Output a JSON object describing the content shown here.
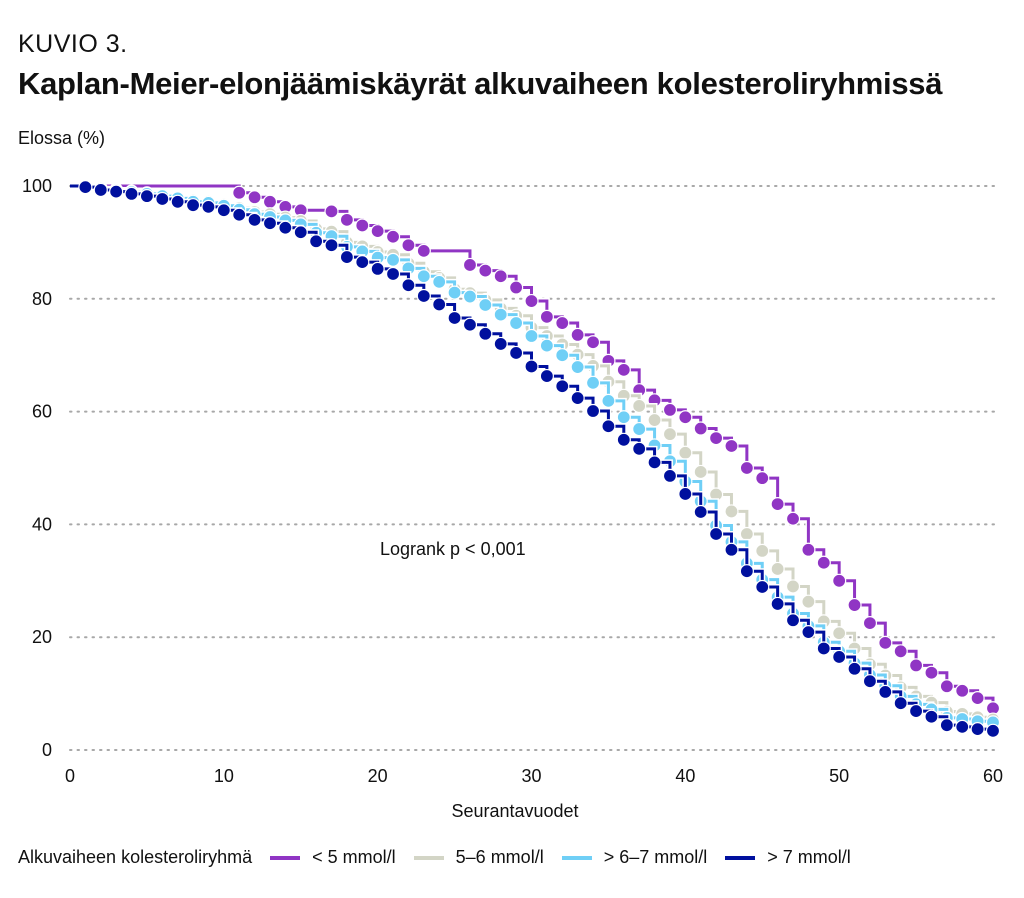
{
  "figure_label": "KUVIO 3.",
  "chart_data": {
    "type": "line",
    "title": "Kaplan-Meier-elonjäämiskäyrät alkuvaiheen kolesteroliryhmissä",
    "ylabel": "Elossa (%)",
    "xlabel": "Seurantavuodet",
    "xlim": [
      0,
      60
    ],
    "ylim": [
      0,
      100
    ],
    "xticks": [
      "0",
      "10",
      "20",
      "30",
      "40",
      "50",
      "60"
    ],
    "yticks": [
      "0",
      "20",
      "40",
      "60",
      "80",
      "100"
    ],
    "grid": "horizontal dotted",
    "annotation": "Logrank p < 0,001",
    "legend_title": "Alkuvaiheen kolesteroliryhmä",
    "legend_position": "bottom",
    "x": [
      0,
      1,
      2,
      3,
      4,
      5,
      6,
      7,
      8,
      9,
      10,
      11,
      12,
      13,
      14,
      15,
      16,
      17,
      18,
      19,
      20,
      21,
      22,
      23,
      24,
      25,
      26,
      27,
      28,
      29,
      30,
      31,
      32,
      33,
      34,
      35,
      36,
      37,
      38,
      39,
      40,
      41,
      42,
      43,
      44,
      45,
      46,
      47,
      48,
      49,
      50,
      51,
      52,
      53,
      54,
      55,
      56,
      57,
      58,
      59,
      60
    ],
    "series": [
      {
        "name": "< 5 mmol/l",
        "color": "#9035c4",
        "values": [
          100,
          100,
          100,
          100,
          100,
          100,
          100,
          100,
          100,
          100,
          100,
          98.8,
          98,
          97.2,
          96.3,
          95.7,
          95.7,
          95.5,
          94,
          93,
          92,
          91,
          89.5,
          88.5,
          88.5,
          88.5,
          86,
          85,
          84,
          82,
          79.6,
          76.8,
          75.7,
          73.6,
          72.3,
          69,
          67.4,
          63.8,
          62,
          60.3,
          59,
          57,
          55.3,
          53.9,
          50,
          48.2,
          43.6,
          41,
          35.5,
          33.2,
          30,
          25.7,
          22.5,
          19,
          17.5,
          15,
          13.7,
          11.3,
          10.5,
          9.2,
          7.4
        ]
      },
      {
        "name": "5–6 mmol/l",
        "color": "#d3d5c6",
        "values": [
          100,
          99.9,
          99.5,
          99.3,
          99.0,
          98.7,
          98.3,
          97.9,
          97.4,
          97.2,
          96.7,
          96.1,
          95.4,
          95.0,
          94.4,
          93.8,
          92.4,
          91.9,
          90.0,
          89.3,
          88.3,
          87.8,
          86.3,
          84.8,
          83.7,
          81.7,
          81.0,
          79.8,
          78.3,
          77.0,
          74.9,
          73.4,
          71.9,
          70.1,
          68.1,
          65.3,
          62.8,
          61.0,
          58.5,
          56.0,
          52.7,
          49.3,
          45.3,
          42.3,
          38.3,
          35.3,
          32.1,
          29.0,
          26.3,
          22.8,
          20.7,
          18.0,
          15.2,
          13.2,
          11.1,
          9.5,
          8.4,
          6.8,
          6.4,
          5.8,
          5.4
        ]
      },
      {
        "name": "> 6–7 mmol/l",
        "color": "#6fcff6",
        "values": [
          100,
          99.9,
          99.5,
          99.2,
          98.9,
          98.6,
          98.2,
          97.8,
          97.2,
          97.0,
          96.5,
          95.8,
          95.0,
          94.5,
          93.9,
          93.2,
          91.7,
          91.1,
          89.2,
          88.4,
          87.3,
          86.9,
          85.4,
          84.0,
          83.0,
          81.1,
          80.4,
          78.9,
          77.2,
          75.7,
          73.4,
          71.7,
          70.0,
          67.9,
          65.1,
          61.9,
          59.0,
          56.9,
          54.0,
          51.2,
          47.6,
          44.1,
          39.8,
          36.9,
          33.1,
          30.2,
          27.1,
          24.2,
          22.0,
          19.1,
          17.5,
          15.4,
          13.3,
          11.4,
          9.5,
          8.1,
          7.2,
          5.7,
          5.5,
          5.1,
          4.9
        ]
      },
      {
        "name": "> 7 mmol/l",
        "color": "#00109e",
        "values": [
          100,
          99.8,
          99.3,
          99,
          98.6,
          98.2,
          97.7,
          97.2,
          96.6,
          96.3,
          95.7,
          94.9,
          94,
          93.4,
          92.6,
          91.8,
          90.2,
          89.5,
          87.4,
          86.5,
          85.3,
          84.4,
          82.4,
          80.5,
          79,
          76.6,
          75.4,
          73.8,
          72,
          70.4,
          68,
          66.3,
          64.5,
          62.4,
          60.1,
          57.4,
          55,
          53.4,
          51,
          48.6,
          45.4,
          42.2,
          38.3,
          35.5,
          31.7,
          28.9,
          25.9,
          23,
          20.9,
          18,
          16.5,
          14.4,
          12.2,
          10.3,
          8.3,
          6.9,
          5.9,
          4.4,
          4.1,
          3.7,
          3.4
        ]
      }
    ]
  }
}
